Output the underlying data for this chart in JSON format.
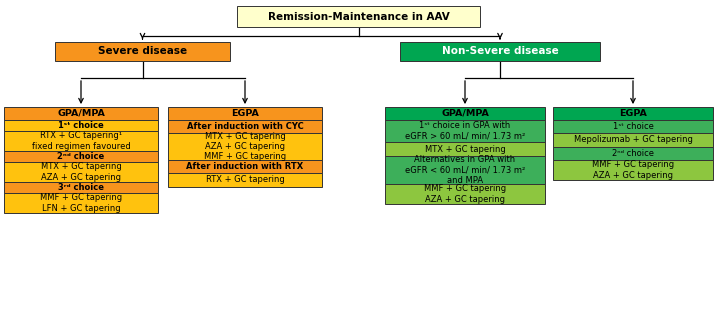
{
  "title": "Remission-Maintenance in AAV",
  "title_bg": "#ffffcc",
  "severe_label": "Severe disease",
  "severe_bg": "#f7941d",
  "nonsevere_label": "Non-Severe disease",
  "nonsevere_bg": "#00a651",
  "nonsevere_text_color": "#ffffff",
  "orange_dark": "#f7941d",
  "orange_light": "#ffc20e",
  "green_dark": "#00a651",
  "green_mid": "#3daf5a",
  "green_light": "#8dc63f",
  "boxes": {
    "gpa_mpa_severe": {
      "header": "GPA/MPA",
      "header_bg": "#f7941d",
      "rows": [
        {
          "text": "1ˢᵗ choice",
          "bg": "#ffc20e",
          "bold": true
        },
        {
          "text": "RTX + GC tapering¹\nfixed regimen favoured",
          "bg": "#ffc20e",
          "bold": false
        },
        {
          "text": "2ⁿᵈ choice",
          "bg": "#f7941d",
          "bold": true
        },
        {
          "text": "MTX + GC tapering\nAZA + GC tapering",
          "bg": "#ffc20e",
          "bold": false
        },
        {
          "text": "3ʳᵈ choice",
          "bg": "#f7941d",
          "bold": true
        },
        {
          "text": "MMF + GC tapering\nLFN + GC tapering",
          "bg": "#ffc20e",
          "bold": false
        }
      ]
    },
    "egpa_severe": {
      "header": "EGPA",
      "header_bg": "#f7941d",
      "rows": [
        {
          "text": "After induction with CYC",
          "bg": "#f7941d",
          "bold": true
        },
        {
          "text": "MTX + GC tapering\nAZA + GC tapering\nMMF + GC tapering",
          "bg": "#ffc20e",
          "bold": false
        },
        {
          "text": "After induction with RTX",
          "bg": "#f7941d",
          "bold": true
        },
        {
          "text": "RTX + GC tapering",
          "bg": "#ffc20e",
          "bold": false
        }
      ]
    },
    "gpa_mpa_nonsevere": {
      "header": "GPA/MPA",
      "header_bg": "#00a651",
      "rows": [
        {
          "text": "1ˢᵗ choice in GPA with\neGFR > 60 mL/ min/ 1.73 m²",
          "bg": "#3daf5a",
          "bold": false
        },
        {
          "text": "MTX + GC tapering",
          "bg": "#8dc63f",
          "bold": false
        },
        {
          "text": "Alternatives in GPA with\neGFR < 60 mL/ min/ 1.73 m²\nand MPA",
          "bg": "#3daf5a",
          "bold": false
        },
        {
          "text": "MMF + GC tapering\nAZA + GC tapering",
          "bg": "#8dc63f",
          "bold": false
        }
      ]
    },
    "egpa_nonsevere": {
      "header": "EGPA",
      "header_bg": "#00a651",
      "rows": [
        {
          "text": "1ˢᵗ choice",
          "bg": "#3daf5a",
          "bold": false
        },
        {
          "text": "Mepolizumab + GC tapering",
          "bg": "#8dc63f",
          "bold": false
        },
        {
          "text": "2ⁿᵈ choice",
          "bg": "#3daf5a",
          "bold": false
        },
        {
          "text": "MMF + GC tapering\nAZA + GC tapering",
          "bg": "#8dc63f",
          "bold": false
        }
      ]
    }
  }
}
